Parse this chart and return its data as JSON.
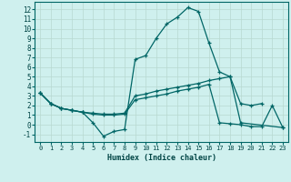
{
  "xlabel": "Humidex (Indice chaleur)",
  "background_color": "#cff0ee",
  "grid_color": "#b8d8d0",
  "line_color": "#006666",
  "xlim": [
    -0.5,
    23.5
  ],
  "ylim": [
    -1.8,
    12.8
  ],
  "xticks": [
    0,
    1,
    2,
    3,
    4,
    5,
    6,
    7,
    8,
    9,
    10,
    11,
    12,
    13,
    14,
    15,
    16,
    17,
    18,
    19,
    20,
    21,
    22,
    23
  ],
  "yticks": [
    -1,
    0,
    1,
    2,
    3,
    4,
    5,
    6,
    7,
    8,
    9,
    10,
    11,
    12
  ],
  "series1_x": [
    0,
    1,
    2,
    3,
    4,
    5,
    6,
    7,
    8,
    9,
    10,
    11,
    12,
    13,
    14,
    15,
    16,
    17,
    18,
    19,
    20,
    21
  ],
  "series1_y": [
    3.3,
    2.2,
    1.7,
    1.5,
    1.3,
    0.2,
    -1.2,
    -0.7,
    -0.5,
    6.8,
    7.2,
    9.0,
    10.5,
    11.2,
    12.2,
    11.8,
    8.5,
    5.5,
    5.0,
    2.2,
    2.0,
    2.2
  ],
  "series2_x": [
    0,
    1,
    2,
    3,
    4,
    5,
    6,
    7,
    8,
    9,
    10,
    11,
    12,
    13,
    14,
    15,
    16,
    17,
    18,
    19,
    23
  ],
  "series2_y": [
    3.3,
    2.2,
    1.7,
    1.5,
    1.3,
    1.2,
    1.1,
    1.1,
    1.2,
    3.0,
    3.2,
    3.5,
    3.7,
    3.9,
    4.1,
    4.3,
    4.6,
    4.8,
    5.0,
    0.2,
    -0.3
  ],
  "series3_x": [
    0,
    1,
    2,
    3,
    4,
    5,
    6,
    7,
    8,
    9,
    10,
    11,
    12,
    13,
    14,
    15,
    16,
    17,
    18,
    19,
    20,
    21,
    22,
    23
  ],
  "series3_y": [
    3.3,
    2.2,
    1.7,
    1.5,
    1.3,
    1.1,
    1.0,
    1.0,
    1.1,
    2.6,
    2.8,
    3.0,
    3.2,
    3.5,
    3.7,
    3.9,
    4.2,
    0.2,
    0.1,
    0.0,
    -0.2,
    -0.2,
    2.0,
    -0.3
  ]
}
